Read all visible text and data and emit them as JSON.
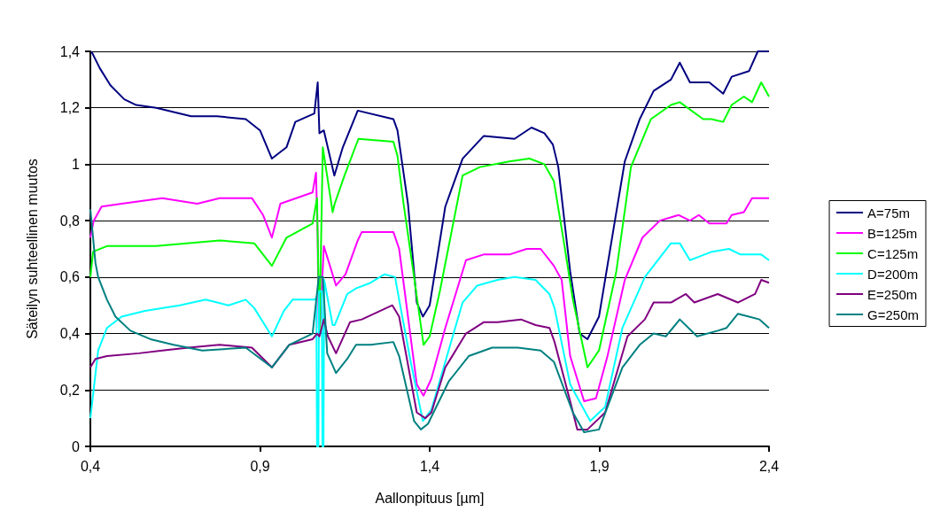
{
  "chart_data": {
    "type": "line",
    "xlabel": "Aallonpituus [µm]",
    "ylabel": "Säteilyn suhteellinen muutos",
    "xlim": [
      0.4,
      2.4
    ],
    "ylim": [
      0,
      1.4
    ],
    "xticks": [
      {
        "value": 0.4,
        "label": "0,4"
      },
      {
        "value": 0.9,
        "label": "0,9"
      },
      {
        "value": 1.4,
        "label": "1,4"
      },
      {
        "value": 1.9,
        "label": "1,9"
      },
      {
        "value": 2.4,
        "label": "2,4"
      }
    ],
    "yticks": [
      0,
      {
        "value": 0.2,
        "label": "0,2"
      },
      {
        "value": 0.4,
        "label": "0,4"
      },
      {
        "value": 0.6,
        "label": "0,6"
      },
      {
        "value": 0.8,
        "label": "0,8"
      },
      1,
      {
        "value": 1.2,
        "label": "1,2"
      },
      {
        "value": 1.4,
        "label": "1,4"
      }
    ],
    "grid": "y",
    "legend": "right",
    "marker": "none",
    "line_style": "solid",
    "series": [
      {
        "name": "A=75m",
        "color": "#000080",
        "x": [
          0.403,
          0.428,
          0.459,
          0.5,
          0.535,
          0.594,
          0.697,
          0.773,
          0.858,
          0.9,
          0.935,
          0.978,
          1.004,
          1.06,
          1.07,
          1.075,
          1.088,
          1.119,
          1.144,
          1.188,
          1.293,
          1.305,
          1.336,
          1.362,
          1.38,
          1.4,
          1.446,
          1.497,
          1.559,
          1.65,
          1.7,
          1.738,
          1.763,
          1.779,
          1.814,
          1.842,
          1.865,
          1.899,
          1.95,
          1.975,
          2.019,
          2.06,
          2.111,
          2.137,
          2.167,
          2.224,
          2.265,
          2.29,
          2.341,
          2.367,
          2.4
        ],
        "values": [
          1.4,
          1.34,
          1.28,
          1.23,
          1.21,
          1.2,
          1.17,
          1.17,
          1.16,
          1.12,
          1.02,
          1.06,
          1.15,
          1.18,
          1.29,
          1.11,
          1.12,
          0.96,
          1.06,
          1.19,
          1.16,
          1.12,
          0.86,
          0.51,
          0.46,
          0.5,
          0.85,
          1.02,
          1.1,
          1.09,
          1.13,
          1.11,
          1.07,
          0.99,
          0.62,
          0.4,
          0.38,
          0.46,
          0.83,
          1.01,
          1.16,
          1.26,
          1.3,
          1.36,
          1.29,
          1.29,
          1.25,
          1.31,
          1.33,
          1.4,
          1.4
        ]
      },
      {
        "name": "B=125m",
        "color": "#ff00ff",
        "x": [
          0.4,
          0.41,
          0.433,
          0.492,
          0.612,
          0.715,
          0.781,
          0.876,
          0.909,
          0.935,
          0.96,
          1.055,
          1.065,
          1.07,
          1.073,
          1.078,
          1.088,
          1.124,
          1.152,
          1.188,
          1.2,
          1.293,
          1.31,
          1.362,
          1.382,
          1.405,
          1.446,
          1.507,
          1.559,
          1.635,
          1.686,
          1.727,
          1.766,
          1.789,
          1.814,
          1.855,
          1.89,
          1.924,
          1.975,
          2.027,
          2.078,
          2.134,
          2.167,
          2.193,
          2.224,
          2.275,
          2.29,
          2.326,
          2.35,
          2.377,
          2.4
        ],
        "values": [
          0.74,
          0.8,
          0.85,
          0.86,
          0.88,
          0.86,
          0.88,
          0.88,
          0.82,
          0.74,
          0.86,
          0.9,
          0.97,
          0.73,
          0.42,
          0.45,
          0.71,
          0.57,
          0.61,
          0.73,
          0.76,
          0.76,
          0.7,
          0.22,
          0.18,
          0.24,
          0.42,
          0.66,
          0.68,
          0.68,
          0.7,
          0.7,
          0.64,
          0.59,
          0.32,
          0.16,
          0.17,
          0.32,
          0.59,
          0.74,
          0.8,
          0.82,
          0.8,
          0.82,
          0.79,
          0.79,
          0.82,
          0.83,
          0.88,
          0.88,
          0.88
        ]
      },
      {
        "name": "C=125m",
        "color": "#00ff00",
        "x": [
          0.4,
          0.408,
          0.449,
          0.594,
          0.781,
          0.883,
          0.935,
          0.978,
          1.055,
          1.068,
          1.075,
          1.085,
          1.114,
          1.12,
          1.149,
          1.19,
          1.293,
          1.305,
          1.323,
          1.354,
          1.382,
          1.4,
          1.43,
          1.497,
          1.548,
          1.635,
          1.694,
          1.738,
          1.766,
          1.796,
          1.822,
          1.865,
          1.899,
          1.95,
          1.993,
          2.052,
          2.111,
          2.137,
          2.206,
          2.23,
          2.265,
          2.29,
          2.326,
          2.35,
          2.377,
          2.4
        ],
        "values": [
          0.6,
          0.69,
          0.71,
          0.71,
          0.73,
          0.72,
          0.64,
          0.74,
          0.79,
          0.88,
          0.4,
          1.06,
          0.83,
          0.86,
          0.96,
          1.09,
          1.08,
          1.03,
          0.86,
          0.6,
          0.36,
          0.39,
          0.55,
          0.96,
          0.99,
          1.01,
          1.02,
          1,
          0.94,
          0.72,
          0.52,
          0.28,
          0.34,
          0.62,
          0.99,
          1.16,
          1.21,
          1.22,
          1.16,
          1.16,
          1.15,
          1.21,
          1.24,
          1.22,
          1.29,
          1.24
        ]
      },
      {
        "name": "D=200m",
        "color": "#00ffff",
        "x": [
          0.4,
          0.423,
          0.449,
          0.492,
          0.561,
          0.663,
          0.74,
          0.807,
          0.858,
          0.883,
          0.935,
          0.97,
          0.996,
          1.062,
          1.066,
          1.068,
          1.072,
          1.074,
          1.082,
          1.084,
          1.087,
          1.089,
          1.114,
          1.12,
          1.157,
          1.183,
          1.226,
          1.267,
          1.298,
          1.31,
          1.344,
          1.38,
          1.405,
          1.446,
          1.497,
          1.54,
          1.6,
          1.65,
          1.712,
          1.753,
          1.768,
          1.814,
          1.873,
          1.917,
          1.968,
          2.034,
          2.111,
          2.137,
          2.167,
          2.188,
          2.232,
          2.282,
          2.316,
          2.377,
          2.4
        ],
        "values": [
          0.1,
          0.34,
          0.42,
          0.46,
          0.48,
          0.5,
          0.52,
          0.5,
          0.52,
          0.49,
          0.39,
          0.48,
          0.52,
          0.52,
          0.53,
          0,
          0,
          0.55,
          0.55,
          0,
          0,
          0.59,
          0.43,
          0.43,
          0.54,
          0.56,
          0.58,
          0.61,
          0.6,
          0.52,
          0.3,
          0.09,
          0.13,
          0.3,
          0.51,
          0.57,
          0.59,
          0.6,
          0.59,
          0.54,
          0.49,
          0.22,
          0.09,
          0.14,
          0.42,
          0.6,
          0.72,
          0.72,
          0.66,
          0.67,
          0.69,
          0.7,
          0.68,
          0.68,
          0.66
        ]
      },
      {
        "name": "E=250m",
        "color": "#800080",
        "x": [
          0.4,
          0.415,
          0.449,
          0.543,
          0.612,
          0.689,
          0.781,
          0.876,
          0.935,
          0.986,
          1.055,
          1.068,
          1.075,
          1.088,
          1.1,
          1.124,
          1.165,
          1.2,
          1.29,
          1.31,
          1.362,
          1.387,
          1.405,
          1.446,
          1.507,
          1.559,
          1.6,
          1.669,
          1.712,
          1.753,
          1.768,
          1.814,
          1.835,
          1.865,
          1.917,
          1.983,
          2.034,
          2.06,
          2.111,
          2.155,
          2.18,
          2.249,
          2.308,
          2.359,
          2.377,
          2.4
        ],
        "values": [
          0.28,
          0.31,
          0.32,
          0.33,
          0.34,
          0.35,
          0.36,
          0.35,
          0.28,
          0.36,
          0.38,
          0.4,
          0.39,
          0.45,
          0.39,
          0.33,
          0.44,
          0.45,
          0.5,
          0.46,
          0.12,
          0.1,
          0.12,
          0.28,
          0.4,
          0.44,
          0.44,
          0.45,
          0.43,
          0.42,
          0.37,
          0.16,
          0.06,
          0.06,
          0.12,
          0.39,
          0.45,
          0.51,
          0.51,
          0.54,
          0.51,
          0.54,
          0.51,
          0.54,
          0.59,
          0.58
        ]
      },
      {
        "name": "G=250m",
        "color": "#008080",
        "x": [
          0.4,
          0.415,
          0.423,
          0.449,
          0.474,
          0.518,
          0.577,
          0.645,
          0.73,
          0.858,
          0.935,
          0.986,
          1.055,
          1.073,
          1.085,
          1.098,
          1.124,
          1.157,
          1.183,
          1.226,
          1.293,
          1.31,
          1.354,
          1.374,
          1.395,
          1.456,
          1.515,
          1.584,
          1.66,
          1.727,
          1.766,
          1.822,
          1.855,
          1.899,
          1.968,
          2.019,
          2.06,
          2.096,
          2.137,
          2.188,
          2.249,
          2.275,
          2.308,
          2.341,
          2.372,
          2.4
        ],
        "values": [
          0.84,
          0.65,
          0.6,
          0.52,
          0.46,
          0.41,
          0.38,
          0.36,
          0.34,
          0.35,
          0.28,
          0.36,
          0.4,
          0.6,
          0.6,
          0.33,
          0.26,
          0.31,
          0.36,
          0.36,
          0.37,
          0.32,
          0.09,
          0.06,
          0.08,
          0.23,
          0.32,
          0.35,
          0.35,
          0.34,
          0.3,
          0.12,
          0.05,
          0.06,
          0.28,
          0.36,
          0.4,
          0.39,
          0.45,
          0.39,
          0.41,
          0.42,
          0.47,
          0.46,
          0.45,
          0.42
        ]
      }
    ]
  }
}
